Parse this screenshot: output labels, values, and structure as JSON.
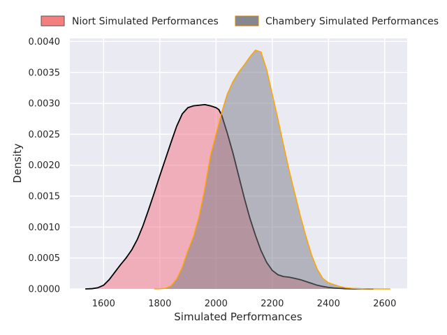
{
  "chart_data": {
    "type": "area",
    "xlabel": "Simulated Performances",
    "ylabel": "Density",
    "xlim": [
      1480,
      2680
    ],
    "ylim": [
      0,
      0.00405
    ],
    "xticks": [
      1600,
      1800,
      2000,
      2200,
      2400,
      2600
    ],
    "xtick_labels": [
      "1600",
      "1800",
      "2000",
      "2200",
      "2400",
      "2600"
    ],
    "yticks": [
      0,
      0.0005,
      0.001,
      0.0015,
      0.002,
      0.0025,
      0.003,
      0.0035,
      0.004
    ],
    "ytick_labels": [
      "0.0000",
      "0.0005",
      "0.0010",
      "0.0015",
      "0.0020",
      "0.0025",
      "0.0030",
      "0.0035",
      "0.0040"
    ],
    "grid": true,
    "legend_position": "top",
    "series": [
      {
        "name": "Niort Simulated Performances",
        "fill": "#f4727f",
        "legend_fill": "#f47f7f",
        "stroke": "#000000",
        "x": [
          1535,
          1560,
          1580,
          1600,
          1620,
          1640,
          1660,
          1680,
          1700,
          1720,
          1740,
          1760,
          1780,
          1800,
          1820,
          1840,
          1860,
          1880,
          1900,
          1920,
          1940,
          1960,
          1980,
          2000,
          2010,
          2020,
          2040,
          2060,
          2080,
          2100,
          2120,
          2140,
          2160,
          2180,
          2200,
          2220,
          2240,
          2260,
          2280,
          2300,
          2320,
          2340,
          2360,
          2380,
          2400,
          2420,
          2440,
          2460,
          2480,
          2500,
          2520,
          2540,
          2560
        ],
        "y": [
          0,
          5e-06,
          2e-05,
          6e-05,
          0.00015,
          0.00027,
          0.00039,
          0.0005,
          0.00063,
          0.0008,
          0.00102,
          0.00128,
          0.00155,
          0.00183,
          0.0021,
          0.00237,
          0.00263,
          0.00283,
          0.00293,
          0.00296,
          0.00297,
          0.00298,
          0.00296,
          0.00293,
          0.0029,
          0.00281,
          0.00252,
          0.0022,
          0.00184,
          0.00148,
          0.00115,
          0.00087,
          0.00062,
          0.00043,
          0.0003,
          0.00023,
          0.0002,
          0.00019,
          0.00017,
          0.00015,
          0.00012,
          9e-05,
          6e-05,
          4e-05,
          2.5e-05,
          1.5e-05,
          1e-05,
          5e-06,
          3e-06,
          2e-06,
          1e-06,
          5e-07,
          0
        ]
      },
      {
        "name": "Chambery Simulated Performances",
        "fill": "#7a7b86",
        "legend_fill": "#878790",
        "stroke": "#ffa500",
        "x": [
          1780,
          1800,
          1820,
          1840,
          1860,
          1880,
          1900,
          1920,
          1940,
          1960,
          1980,
          2000,
          2020,
          2040,
          2060,
          2080,
          2100,
          2120,
          2140,
          2160,
          2180,
          2200,
          2220,
          2240,
          2260,
          2280,
          2300,
          2320,
          2340,
          2360,
          2380,
          2400,
          2420,
          2440,
          2460,
          2480,
          2500,
          2520,
          2540,
          2560,
          2580,
          2600,
          2620
        ],
        "y": [
          0,
          3e-06,
          1e-05,
          5e-05,
          0.00016,
          0.00035,
          0.00062,
          0.00085,
          0.00118,
          0.00162,
          0.00215,
          0.0025,
          0.00285,
          0.00315,
          0.00335,
          0.0035,
          0.00362,
          0.00375,
          0.00386,
          0.00383,
          0.00355,
          0.00315,
          0.00275,
          0.00233,
          0.00192,
          0.00155,
          0.00118,
          0.00085,
          0.00055,
          0.00032,
          0.00017,
          0.0001,
          7e-05,
          4e-05,
          2e-05,
          1.2e-05,
          6e-06,
          3e-06,
          1.5e-06,
          8e-07,
          4e-07,
          2e-07,
          0
        ]
      }
    ]
  }
}
